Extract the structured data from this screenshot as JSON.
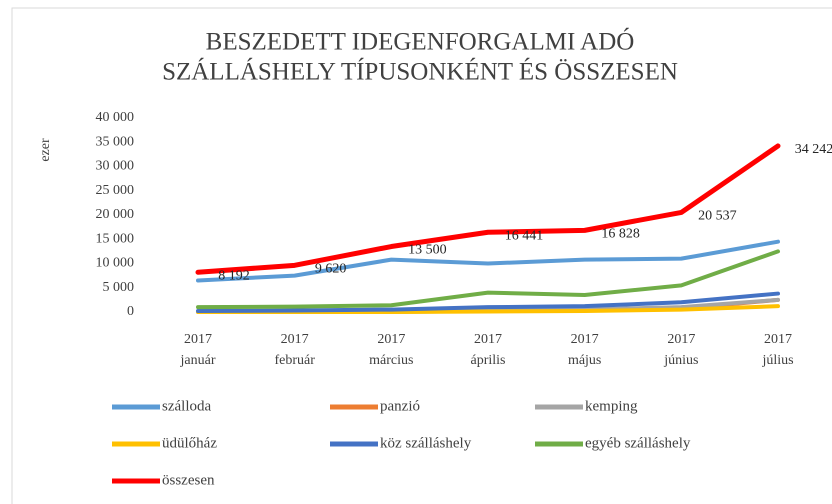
{
  "chart_data": {
    "type": "line",
    "title": [
      "BESZEDETT IDEGENFORGALMI ADÓ",
      "SZÁLLÁSHELY TÍPUSONKÉNT ÉS ÖSSZESEN"
    ],
    "y_label": "ezer",
    "categories": [
      [
        "2017",
        "január"
      ],
      [
        "2017",
        "február"
      ],
      [
        "2017",
        "március"
      ],
      [
        "2017",
        "április"
      ],
      [
        "2017",
        "május"
      ],
      [
        "2017",
        "június"
      ],
      [
        "2017",
        "július"
      ]
    ],
    "ylim": [
      0,
      40000
    ],
    "yticks": [
      {
        "value": 0,
        "label": "0"
      },
      {
        "value": 5000,
        "label": "5 000"
      },
      {
        "value": 10000,
        "label": "10 000"
      },
      {
        "value": 15000,
        "label": "15 000"
      },
      {
        "value": 20000,
        "label": "20 000"
      },
      {
        "value": 25000,
        "label": "25 000"
      },
      {
        "value": 30000,
        "label": "30 000"
      },
      {
        "value": 35000,
        "label": "35 000"
      },
      {
        "value": 40000,
        "label": "40 000"
      }
    ],
    "grid": false,
    "series": [
      {
        "name": "szálloda",
        "color": "#5b9bd5",
        "values": [
          6500,
          7500,
          10800,
          10000,
          10800,
          11000,
          14500
        ]
      },
      {
        "name": "panzió",
        "color": "#ed7d31",
        "values": [
          100,
          100,
          200,
          400,
          500,
          700,
          2500
        ]
      },
      {
        "name": "kemping",
        "color": "#a5a5a5",
        "values": [
          0,
          0,
          0,
          200,
          500,
          1000,
          2500
        ]
      },
      {
        "name": "üdülőház",
        "color": "#ffc000",
        "values": [
          0,
          0,
          0,
          100,
          200,
          500,
          1200
        ]
      },
      {
        "name": "köz szálláshely",
        "color": "#4472c4",
        "values": [
          200,
          300,
          500,
          1000,
          1200,
          2000,
          3800
        ]
      },
      {
        "name": "egyéb szálláshely",
        "color": "#70ad47",
        "values": [
          1000,
          1100,
          1400,
          4000,
          3500,
          5500,
          12500
        ]
      },
      {
        "name": "összesen",
        "color": "#ff0000",
        "values": [
          8192,
          9620,
          13500,
          16441,
          16828,
          20537,
          34242
        ],
        "value_labels": [
          "8 192",
          "9 620",
          "13 500",
          "16 441",
          "16 828",
          "20 537",
          "34 242"
        ]
      }
    ]
  }
}
